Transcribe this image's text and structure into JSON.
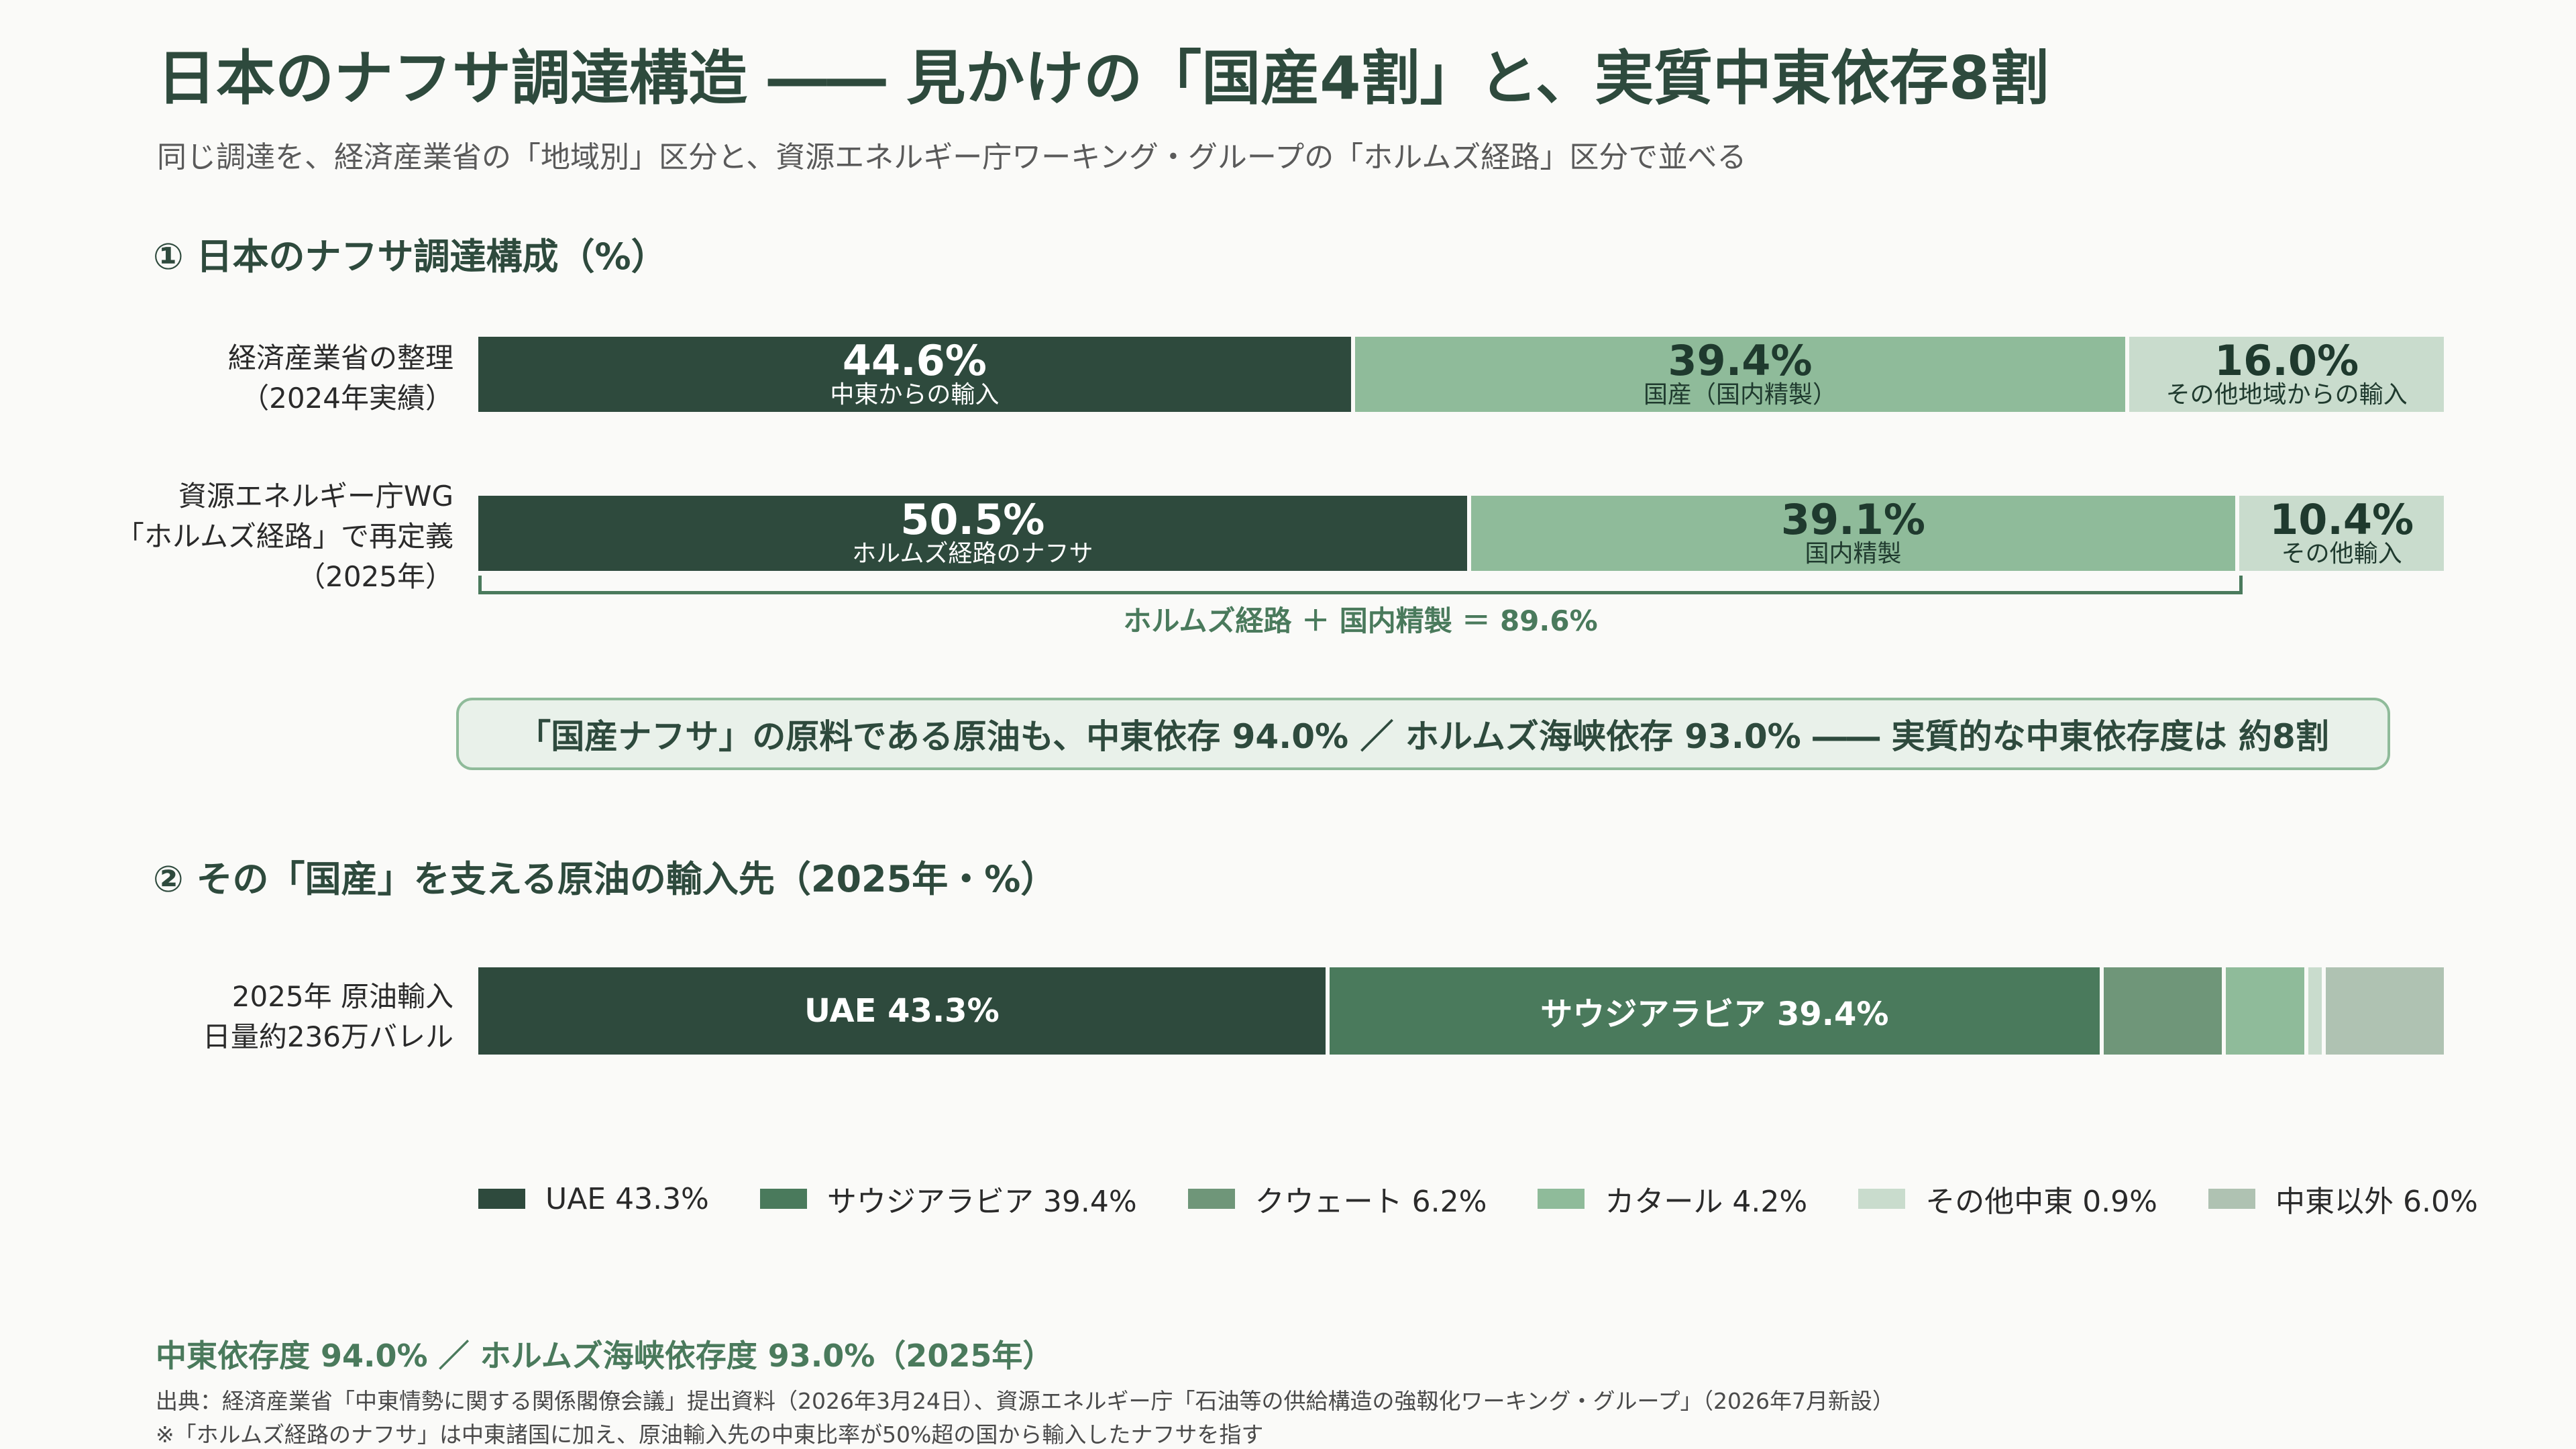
{
  "title": "日本のナフサ調達構造 ―― 見かけの「国産4割」と、実質中東依存8割",
  "subtitle": "同じ調達を、経済産業省の「地域別」区分と、資源エネルギー庁ワーキング・グループの「ホルムズ経路」区分で並べる",
  "section1": {
    "heading": "① 日本のナフサ調達構成（%）",
    "rows": [
      {
        "label_line1": "経済産業省の整理",
        "label_line2": "（2024年実績）",
        "label_line3": "",
        "segments": [
          {
            "pct": "44.6%",
            "label": "中東からの輸入"
          },
          {
            "pct": "39.4%",
            "label": "国産（国内精製）"
          },
          {
            "pct": "16.0%",
            "label": "その他地域からの輸入"
          }
        ]
      },
      {
        "label_line1": "資源エネルギー庁WG",
        "label_line2": "「ホルムズ経路」で再定義",
        "label_line3": "（2025年）",
        "segments": [
          {
            "pct": "50.5%",
            "label": "ホルムズ経路のナフサ"
          },
          {
            "pct": "39.1%",
            "label": "国内精製"
          },
          {
            "pct": "10.4%",
            "label": "その他輸入"
          }
        ]
      }
    ],
    "bracket_label": "ホルムズ経路 ＋ 国内精製 ＝ 89.6%"
  },
  "callout": "「国産ナフサ」の原料である原油も、中東依存 94.0% ／ ホルムズ海峡依存 93.0% ―― 実質的な中東依存度は 約8割",
  "section2": {
    "heading": "② その「国産」を支える原油の輸入先（2025年・%）",
    "label_line1": "2025年 原油輸入",
    "label_line2": "日量約236万バレル",
    "seg_uae": "UAE 43.3%",
    "seg_saudi": "サウジアラビア 39.4%"
  },
  "legend": [
    {
      "label": "UAE 43.3%",
      "color": "#2e4a3d"
    },
    {
      "label": "サウジアラビア 39.4%",
      "color": "#4a7a5c"
    },
    {
      "label": "クウェート 6.2%",
      "color": "#6f9679"
    },
    {
      "label": "カタール 4.2%",
      "color": "#8fbb9a"
    },
    {
      "label": "その他中東 0.9%",
      "color": "#c9dccd"
    },
    {
      "label": "中東以外 6.0%",
      "color": "#afc2b2"
    }
  ],
  "footer": {
    "highlight": "中東依存度 94.0% ／ ホルムズ海峡依存度 93.0%（2025年）",
    "source": "出典：経済産業省「中東情勢に関する関係閣僚会議」提出資料（2026年3月24日）、資源エネルギー庁「石油等の供給構造の強靱化ワーキング・グループ」（2026年7月新設）",
    "note": "※「ホルムズ経路のナフサ」は中東諸国に加え、原油輸入先の中東比率が50%超の国から輸入したナフサを指す"
  },
  "chart_data": [
    {
      "type": "bar",
      "stacked": true,
      "orientation": "horizontal",
      "title": "① 日本のナフサ調達構成（%）",
      "categories": [
        "経済産業省の整理（2024年実績）",
        "資源エネルギー庁WG「ホルムズ経路」で再定義（2025年）"
      ],
      "series": [
        {
          "name": "中東からの輸入 / ホルムズ経路のナフサ",
          "values": [
            44.6,
            50.5
          ],
          "color": "#2e4a3d"
        },
        {
          "name": "国産（国内精製） / 国内精製",
          "values": [
            39.4,
            39.1
          ],
          "color": "#8fbb9a"
        },
        {
          "name": "その他地域からの輸入 / その他輸入",
          "values": [
            16.0,
            10.4
          ],
          "color": "#c9dccd"
        }
      ],
      "xlim": [
        0,
        100
      ]
    },
    {
      "type": "bar",
      "stacked": true,
      "orientation": "horizontal",
      "title": "② その「国産」を支える原油の輸入先（2025年・%）",
      "categories": [
        "2025年 原油輸入 日量約236万バレル"
      ],
      "series": [
        {
          "name": "UAE",
          "values": [
            43.3
          ],
          "color": "#2e4a3d"
        },
        {
          "name": "サウジアラビア",
          "values": [
            39.4
          ],
          "color": "#4a7a5c"
        },
        {
          "name": "クウェート",
          "values": [
            6.2
          ],
          "color": "#6f9679"
        },
        {
          "name": "カタール",
          "values": [
            4.2
          ],
          "color": "#8fbb9a"
        },
        {
          "name": "その他中東",
          "values": [
            0.9
          ],
          "color": "#c9dccd"
        },
        {
          "name": "中東以外",
          "values": [
            6.0
          ],
          "color": "#afc2b2"
        }
      ],
      "xlim": [
        0,
        100
      ],
      "legend": "bottom"
    }
  ]
}
